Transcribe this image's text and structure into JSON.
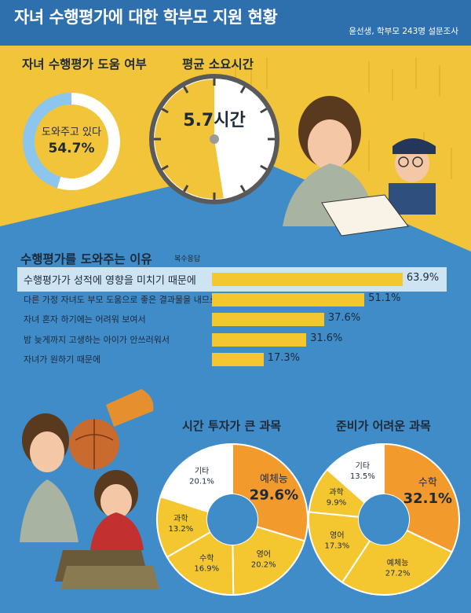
{
  "header": {
    "title": "자녀 수행평가에 대한 학부모 지원 현황",
    "subtitle": "윤선생, 학부모 243명 설문조사"
  },
  "colors": {
    "header_bg": "#2e6fae",
    "body_bg": "#3f8cc8",
    "upper_bg": "#f2c43a",
    "accent_orange": "#f39a2d",
    "accent_yellow": "#f4c731",
    "light_blue": "#8cc6ec"
  },
  "help": {
    "title": "자녀  수행평가 도움 여부",
    "center_label": "도와주고 있다",
    "value_label": "54.7%"
  },
  "time": {
    "title": "평균 소요시간",
    "value_label": "5.7시간"
  },
  "reasons": {
    "title": "수행평가를 도와주는 이유",
    "note": "복수응답"
  },
  "pie1": {
    "title": "시간 투자가 큰 과목"
  },
  "pie2": {
    "title": "준비가 어려운 과목"
  },
  "chart_data": [
    {
      "type": "pie",
      "title": "자녀  수행평가 도움 여부",
      "labels": [
        "도와주고 있다"
      ],
      "values": [
        54.7
      ]
    },
    {
      "type": "gauge",
      "title": "평균 소요시간",
      "value": 5.7,
      "max": 12,
      "unit": "시간"
    },
    {
      "type": "bar",
      "title": "수행평가를 도와주는 이유",
      "note": "복수응답",
      "categories": [
        "수행평가가 성적에 영향을 미치기 때문에",
        "다른 가정 자녀도 부모 도움으로 좋은 결과물을 내므로",
        "자녀 혼자 하기에는 어려워 보여서",
        "밤 늦게까지 고생하는 아이가 안쓰러워서",
        "자녀가 원하기 때문에"
      ],
      "values": [
        63.9,
        51.1,
        37.6,
        31.6,
        17.3
      ],
      "value_labels": [
        "63.9%",
        "51.1%",
        "37.6%",
        "31.6%",
        "17.3%"
      ]
    },
    {
      "type": "pie",
      "title": "시간 투자가 큰 과목",
      "labels": [
        "예체능",
        "영어",
        "수학",
        "과학",
        "기타"
      ],
      "values": [
        29.6,
        20.2,
        16.9,
        13.2,
        20.1
      ],
      "value_labels": [
        "29.6%",
        "20.2%",
        "16.9%",
        "13.2%",
        "20.1%"
      ]
    },
    {
      "type": "pie",
      "title": "준비가 어려운 과목",
      "labels": [
        "수학",
        "예체능",
        "영어",
        "과학",
        "기타"
      ],
      "values": [
        32.1,
        27.2,
        17.3,
        9.9,
        13.5
      ],
      "value_labels": [
        "32.1%",
        "27.2%",
        "17.3%",
        "9.9%",
        "13.5%"
      ]
    }
  ]
}
